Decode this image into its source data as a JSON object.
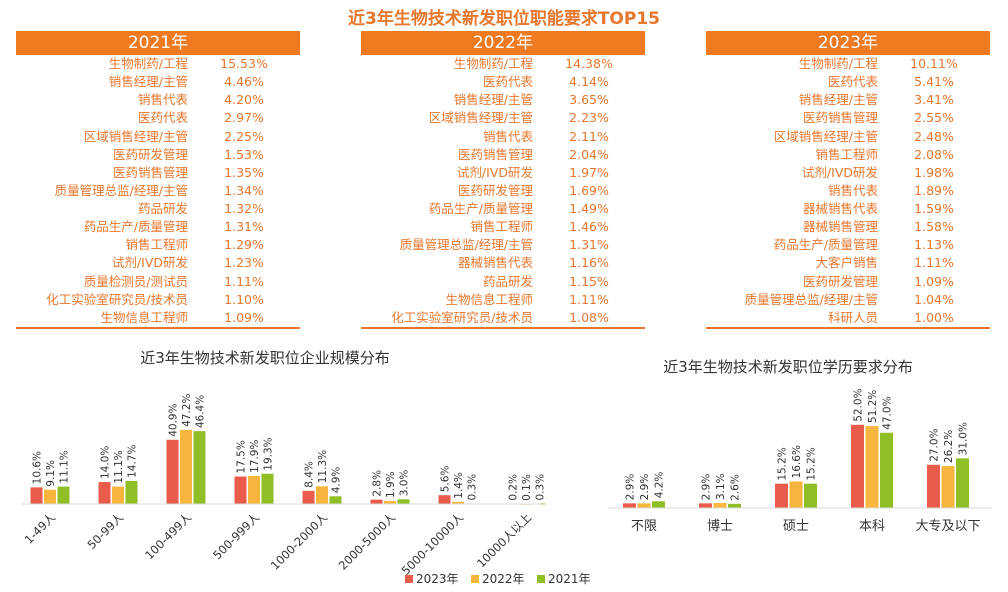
{
  "title": "近3年生物技术新发职位职能要求TOP15",
  "colors": {
    "y2023": "#e95b4b",
    "y2022": "#f6b53c",
    "y2021": "#8fbe25",
    "accent": "#f07a22"
  },
  "rank_tables": [
    {
      "year": "2021年",
      "rows": [
        {
          "role": "生物制药/工程",
          "pct": "15.53%"
        },
        {
          "role": "销售经理/主管",
          "pct": "4.46%"
        },
        {
          "role": "销售代表",
          "pct": "4.20%"
        },
        {
          "role": "医药代表",
          "pct": "2.97%"
        },
        {
          "role": "区域销售经理/主管",
          "pct": "2.25%"
        },
        {
          "role": "医药研发管理",
          "pct": "1.53%"
        },
        {
          "role": "医药销售管理",
          "pct": "1.35%"
        },
        {
          "role": "质量管理总监/经理/主管",
          "pct": "1.34%"
        },
        {
          "role": "药品研发",
          "pct": "1.32%"
        },
        {
          "role": "药品生产/质量管理",
          "pct": "1.31%"
        },
        {
          "role": "销售工程师",
          "pct": "1.29%"
        },
        {
          "role": "试剂/IVD研发",
          "pct": "1.23%"
        },
        {
          "role": "质量检测员/测试员",
          "pct": "1.11%"
        },
        {
          "role": "化工实验室研究员/技术员",
          "pct": "1.10%"
        },
        {
          "role": "生物信息工程师",
          "pct": "1.09%"
        }
      ]
    },
    {
      "year": "2022年",
      "rows": [
        {
          "role": "生物制药/工程",
          "pct": "14.38%"
        },
        {
          "role": "医药代表",
          "pct": "4.14%"
        },
        {
          "role": "销售经理/主管",
          "pct": "3.65%"
        },
        {
          "role": "区域销售经理/主管",
          "pct": "2.23%"
        },
        {
          "role": "销售代表",
          "pct": "2.11%"
        },
        {
          "role": "医药销售管理",
          "pct": "2.04%"
        },
        {
          "role": "试剂/IVD研发",
          "pct": "1.97%"
        },
        {
          "role": "医药研发管理",
          "pct": "1.69%"
        },
        {
          "role": "药品生产/质量管理",
          "pct": "1.49%"
        },
        {
          "role": "销售工程师",
          "pct": "1.46%"
        },
        {
          "role": "质量管理总监/经理/主管",
          "pct": "1.31%"
        },
        {
          "role": "器械销售代表",
          "pct": "1.16%"
        },
        {
          "role": "药品研发",
          "pct": "1.15%"
        },
        {
          "role": "生物信息工程师",
          "pct": "1.11%"
        },
        {
          "role": "化工实验室研究员/技术员",
          "pct": "1.08%"
        }
      ]
    },
    {
      "year": "2023年",
      "rows": [
        {
          "role": "生物制药/工程",
          "pct": "10.11%"
        },
        {
          "role": "医药代表",
          "pct": "5.41%"
        },
        {
          "role": "销售经理/主管",
          "pct": "3.41%"
        },
        {
          "role": "医药销售管理",
          "pct": "2.55%"
        },
        {
          "role": "区域销售经理/主管",
          "pct": "2.48%"
        },
        {
          "role": "销售工程师",
          "pct": "2.08%"
        },
        {
          "role": "试剂/IVD研发",
          "pct": "1.98%"
        },
        {
          "role": "销售代表",
          "pct": "1.89%"
        },
        {
          "role": "器械销售代表",
          "pct": "1.59%"
        },
        {
          "role": "器械销售管理",
          "pct": "1.58%"
        },
        {
          "role": "药品生产/质量管理",
          "pct": "1.13%"
        },
        {
          "role": "大客户销售",
          "pct": "1.11%"
        },
        {
          "role": "医药研发管理",
          "pct": "1.09%"
        },
        {
          "role": "质量管理总监/经理/主管",
          "pct": "1.04%"
        },
        {
          "role": "科研人员",
          "pct": "1.00%"
        }
      ]
    }
  ],
  "chart_data": [
    {
      "type": "bar",
      "title": "近3年生物技术新发职位企业规模分布",
      "categories": [
        "1-49人",
        "50-99人",
        "100-499人",
        "500-999人",
        "1000-2000人",
        "2000-5000人",
        "5000-10000人",
        "10000人以上"
      ],
      "series": [
        {
          "name": "2023年",
          "values": [
            10.6,
            14.0,
            40.9,
            17.5,
            8.4,
            2.8,
            5.6,
            0.2
          ]
        },
        {
          "name": "2022年",
          "values": [
            9.1,
            11.1,
            47.2,
            17.9,
            11.3,
            1.9,
            1.4,
            0.1
          ]
        },
        {
          "name": "2021年",
          "values": [
            11.1,
            14.7,
            46.4,
            19.3,
            4.9,
            3.0,
            0.3,
            0.3
          ]
        }
      ],
      "legend": [
        "2023年",
        "2022年",
        "2021年"
      ],
      "legend_position": "bottom",
      "ylim": [
        0,
        50
      ],
      "grid": false
    },
    {
      "type": "bar",
      "title": "近3年生物技术新发职位学历要求分布",
      "categories": [
        "不限",
        "博士",
        "硕士",
        "本科",
        "大专及以下"
      ],
      "series": [
        {
          "name": "2023年",
          "values": [
            2.9,
            2.9,
            15.2,
            52.0,
            27.0
          ]
        },
        {
          "name": "2022年",
          "values": [
            2.9,
            3.1,
            16.6,
            51.2,
            26.2
          ]
        },
        {
          "name": "2021年",
          "values": [
            4.2,
            2.6,
            15.2,
            47.0,
            31.0
          ]
        }
      ],
      "ylim": [
        0,
        55
      ],
      "grid": false
    }
  ]
}
